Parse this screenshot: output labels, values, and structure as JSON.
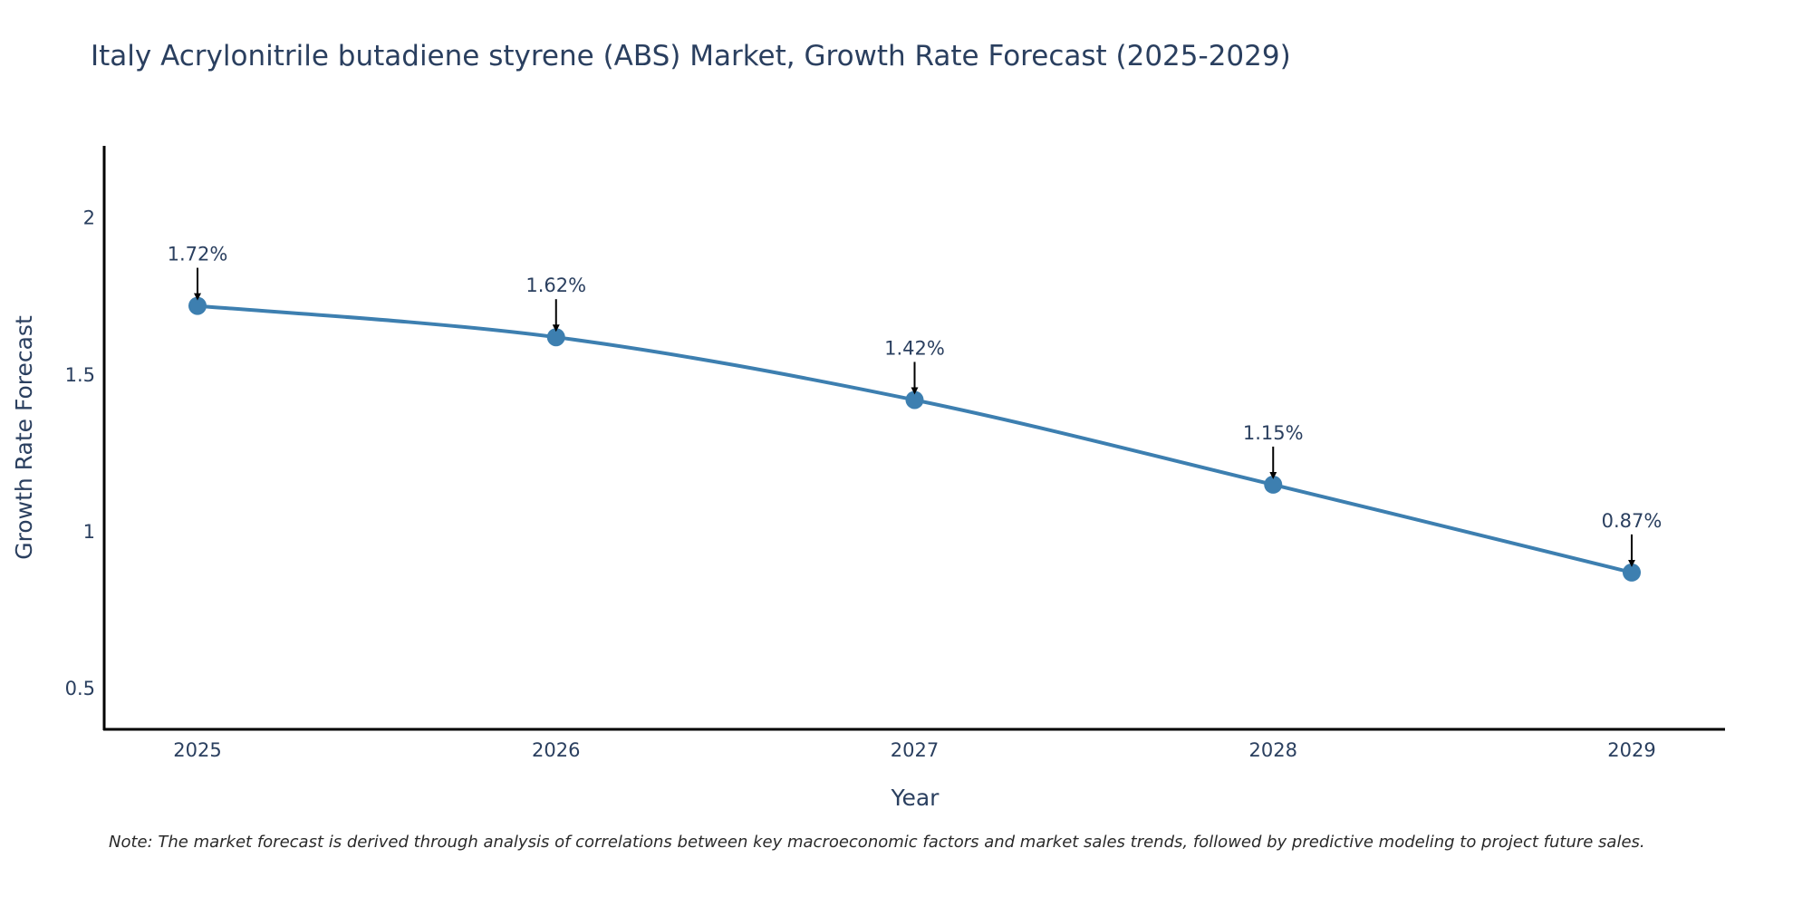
{
  "chart_data": {
    "type": "line",
    "title": "Italy Acrylonitrile butadiene styrene (ABS) Market, Growth Rate Forecast (2025-2029)",
    "xlabel": "Year",
    "ylabel": "Growth Rate Forecast",
    "categories": [
      "2025",
      "2026",
      "2027",
      "2028",
      "2029"
    ],
    "values": [
      1.72,
      1.62,
      1.42,
      1.15,
      0.87
    ],
    "data_labels": [
      "1.72%",
      "1.62%",
      "1.42%",
      "1.15%",
      "0.87%"
    ],
    "ylim": [
      0.37,
      2.23
    ],
    "yticks": [
      0.5,
      1,
      1.5,
      2
    ],
    "ytick_labels": [
      "0.5",
      "1",
      "1.5",
      "2"
    ],
    "grid": false,
    "line_color": "#3d7fb0",
    "marker_color": "#3d7fb0"
  },
  "note": "Note: The market forecast is derived through analysis of correlations between key macroeconomic factors and market sales trends, followed by predictive modeling to project future sales."
}
